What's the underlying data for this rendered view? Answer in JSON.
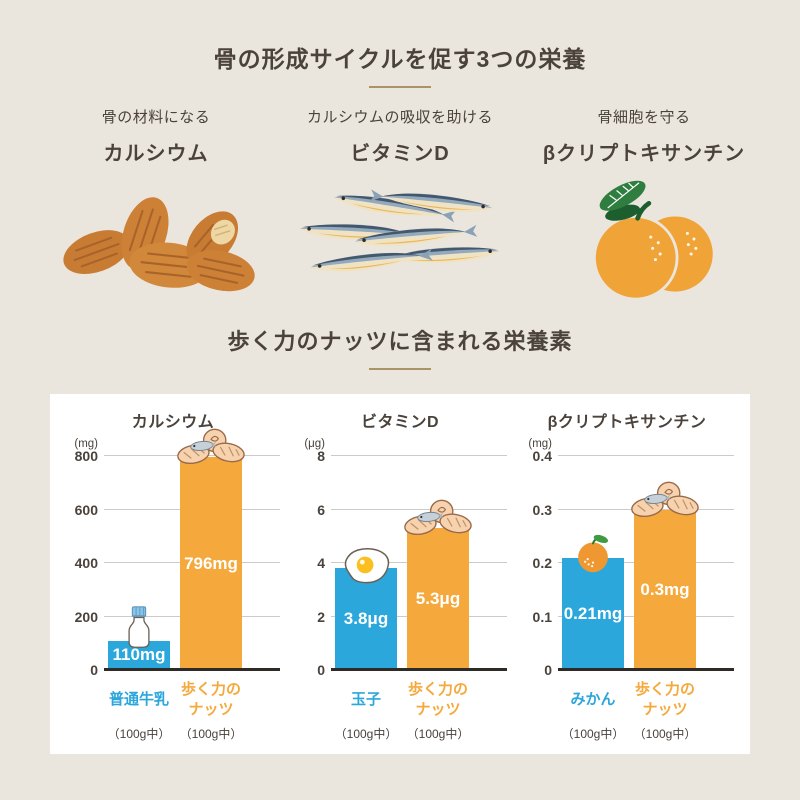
{
  "header": {
    "title": "骨の形成サイクルを促す3つの栄養"
  },
  "nutrients": [
    {
      "role": "骨の材料になる",
      "name": "カルシウム",
      "illustration": "almonds-illustration"
    },
    {
      "role": "カルシウムの吸収を助ける",
      "name": "ビタミンD",
      "illustration": "sardines-illustration"
    },
    {
      "role": "骨細胞を守る",
      "name": "βクリプトキサンチン",
      "illustration": "mandarin-oranges-illustration"
    }
  ],
  "chart_section": {
    "title": "歩く力のナッツに含まれる栄養素"
  },
  "colors": {
    "background": "#EBE6DD",
    "card": "#FFFFFF",
    "heading_text": "#4A423B",
    "underline": "#AC9366",
    "bar_blue": "#2CA7DC",
    "bar_orange": "#F5A93C",
    "gridline": "#CDCBC7",
    "axis_line": "#2E2A26"
  },
  "chart_data": [
    {
      "type": "bar",
      "title": "カルシウム",
      "unit": "(mg)",
      "ylim": [
        0,
        800
      ],
      "yticks": [
        0,
        200,
        400,
        600,
        800
      ],
      "ytick_labels": [
        "0",
        "200",
        "400",
        "600",
        "800"
      ],
      "categories": [
        "普通牛乳",
        "歩く力のナッツ"
      ],
      "category_notes": [
        "（100g中）",
        "（100g中）"
      ],
      "values": [
        110,
        796
      ],
      "bar_labels": [
        "110mg",
        "796mg"
      ],
      "bar_colors": [
        "#2CA7DC",
        "#F5A93C"
      ],
      "bar_icons": [
        "milk-bottle-icon",
        "nuts-pile-icon"
      ],
      "legend_position": "none",
      "grid": true
    },
    {
      "type": "bar",
      "title": "ビタミンD",
      "unit": "(μg)",
      "ylim": [
        0,
        8
      ],
      "yticks": [
        0,
        2,
        4,
        6,
        8
      ],
      "ytick_labels": [
        "0",
        "2",
        "4",
        "6",
        "8"
      ],
      "categories": [
        "玉子",
        "歩く力のナッツ"
      ],
      "category_notes": [
        "（100g中）",
        "（100g中）"
      ],
      "values": [
        3.8,
        5.3
      ],
      "bar_labels": [
        "3.8μg",
        "5.3μg"
      ],
      "bar_colors": [
        "#2CA7DC",
        "#F5A93C"
      ],
      "bar_icons": [
        "fried-egg-icon",
        "nuts-pile-icon"
      ],
      "legend_position": "none",
      "grid": true
    },
    {
      "type": "bar",
      "title": "βクリプトキサンチン",
      "unit": "(mg)",
      "ylim": [
        0,
        0.4
      ],
      "yticks": [
        0,
        0.1,
        0.2,
        0.3,
        0.4
      ],
      "ytick_labels": [
        "0",
        "0.1",
        "0.2",
        "0.3",
        "0.4"
      ],
      "categories": [
        "みかん",
        "歩く力のナッツ"
      ],
      "category_notes": [
        "（100g中）",
        "（100g中）"
      ],
      "values": [
        0.21,
        0.3
      ],
      "bar_labels": [
        "0.21mg",
        "0.3mg"
      ],
      "bar_colors": [
        "#2CA7DC",
        "#F5A93C"
      ],
      "bar_icons": [
        "mandarin-icon",
        "nuts-pile-icon"
      ],
      "legend_position": "none",
      "grid": true
    }
  ]
}
